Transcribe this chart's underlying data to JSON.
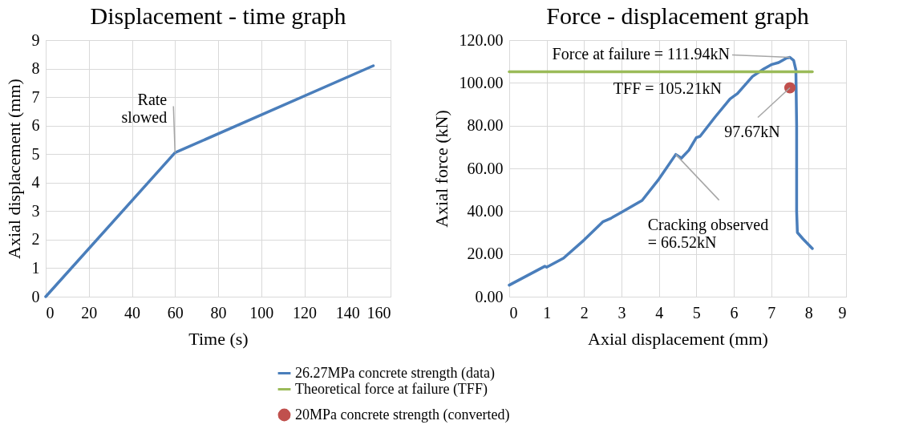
{
  "chart_data": [
    {
      "type": "line",
      "title": "Displacement - time graph",
      "xlabel": "Time (s)",
      "ylabel": "Axial displacement (mm)",
      "xlim": [
        0,
        160
      ],
      "xticks": [
        0,
        20,
        40,
        60,
        80,
        100,
        120,
        140,
        160
      ],
      "ylim": [
        0,
        9
      ],
      "yticks": [
        0,
        1,
        2,
        3,
        4,
        5,
        6,
        7,
        8,
        9
      ],
      "grid": true,
      "series": [
        {
          "color": "#4a7ebb",
          "x": [
            0,
            60,
            152
          ],
          "values": [
            0,
            5.05,
            8.1
          ]
        }
      ],
      "annotations": [
        {
          "text": "Rate\nslowed",
          "x": 60,
          "y": 5.05
        }
      ]
    },
    {
      "type": "line",
      "title": "Force - displacement graph",
      "xlabel": "Axial displacement (mm)",
      "ylabel": "Axial force (kN)",
      "xlim": [
        0,
        9
      ],
      "xticks": [
        0,
        1,
        2,
        3,
        4,
        5,
        6,
        7,
        8,
        9
      ],
      "ylim": [
        0,
        120
      ],
      "yticks": [
        {
          "value": 0,
          "label": "0.00"
        },
        {
          "value": 20,
          "label": "20.00"
        },
        {
          "value": 40,
          "label": "40.00"
        },
        {
          "value": 60,
          "label": "60.00"
        },
        {
          "value": 80,
          "label": "80.00"
        },
        {
          "value": 100,
          "label": "100.00"
        },
        {
          "value": 120,
          "label": "120.00"
        }
      ],
      "grid": true,
      "legend": "bottom",
      "series": [
        {
          "name": "26.27MPa concrete strength (data)",
          "color": "#4a7ebb",
          "x": [
            0,
            0.95,
            1.0,
            1.45,
            2,
            2.5,
            2.7,
            3,
            3.55,
            4,
            4.45,
            4.6,
            4.8,
            5,
            5.1,
            5.5,
            5.9,
            6.1,
            6.5,
            6.8,
            7.0,
            7.2,
            7.4,
            7.5,
            7.6,
            7.66,
            7.68,
            7.68,
            7.7,
            7.85,
            8.1
          ],
          "values": [
            5.4,
            14.2,
            13.8,
            18,
            26.5,
            35,
            36.5,
            39.5,
            45,
            55,
            66.52,
            64.8,
            68.5,
            74.4,
            75,
            84,
            92.5,
            95,
            103,
            106.5,
            108.5,
            109.5,
            111.5,
            111.94,
            110.5,
            106,
            80,
            40,
            30,
            27,
            22.5
          ]
        },
        {
          "name": "20MPa concrete strength (converted)",
          "type": "scatter",
          "marker": "circle",
          "color": "#c0504d",
          "x": [
            7.5
          ],
          "values": [
            97.67
          ]
        },
        {
          "name": "Theoretical force at failure (TFF)",
          "color": "#9bbb59",
          "x": [
            0,
            8.1
          ],
          "values": [
            105.21,
            105.21
          ]
        }
      ],
      "annotations": [
        {
          "text": "Force at failure = 111.94kN",
          "x": 7.5,
          "y": 111.94
        },
        {
          "text": "TFF = 105.21kN",
          "y": 105.21
        },
        {
          "text": "97.67kN",
          "x": 7.5,
          "y": 97.67
        },
        {
          "text": "Cracking observed\n= 66.52kN",
          "x": 4.45,
          "y": 66.52
        }
      ]
    }
  ]
}
